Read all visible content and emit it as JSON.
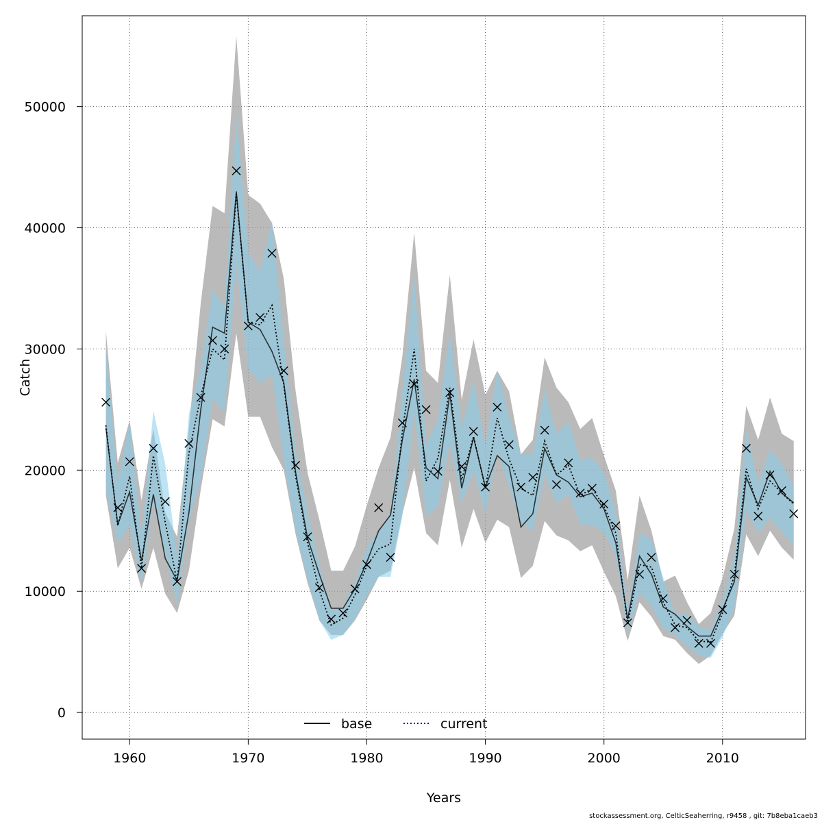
{
  "chart_data": {
    "type": "line",
    "xlabel": "Years",
    "ylabel": "Catch",
    "xlim": [
      1956,
      2017
    ],
    "ylim": [
      -2200,
      57500
    ],
    "xticks": [
      1960,
      1970,
      1980,
      1990,
      2000,
      2010
    ],
    "yticks": [
      0,
      10000,
      20000,
      30000,
      40000,
      50000
    ],
    "grid": true,
    "legend_position": "bottom-center",
    "colors": {
      "base_band": "#a0a0a0",
      "current_band": "#87ceeb",
      "base_line": "#000000",
      "current_line": "#00008b",
      "observed_marker": "#000000"
    },
    "x": [
      1958,
      1959,
      1960,
      1961,
      1962,
      1963,
      1964,
      1965,
      1966,
      1967,
      1968,
      1969,
      1970,
      1971,
      1972,
      1973,
      1974,
      1975,
      1976,
      1977,
      1978,
      1979,
      1980,
      1981,
      1982,
      1983,
      1984,
      1985,
      1986,
      1987,
      1988,
      1989,
      1990,
      1991,
      1992,
      1993,
      1994,
      1995,
      1996,
      1997,
      1998,
      1999,
      2000,
      2001,
      2002,
      2003,
      2004,
      2005,
      2006,
      2007,
      2008,
      2009,
      2010,
      2011,
      2012,
      2013,
      2014,
      2015,
      2016
    ],
    "observed": [
      25600,
      16900,
      20700,
      11900,
      21800,
      17400,
      10800,
      22200,
      26000,
      30700,
      30000,
      44700,
      31900,
      32600,
      37900,
      28200,
      20400,
      14500,
      10300,
      7700,
      8200,
      10200,
      12200,
      16900,
      12800,
      23900,
      27100,
      25000,
      19900,
      26400,
      20300,
      23200,
      18600,
      25200,
      22100,
      18600,
      19400,
      23300,
      18800,
      20600,
      18100,
      18500,
      17200,
      15400,
      7400,
      11400,
      12800,
      9400,
      7000,
      7600,
      5700,
      5700,
      8500,
      11400,
      21800,
      16200,
      19600,
      18300,
      16400
    ],
    "series": [
      {
        "name": "base",
        "values": [
          23500,
          15500,
          18200,
          12500,
          18000,
          12700,
          10900,
          16500,
          25000,
          31800,
          31300,
          43000,
          32200,
          31600,
          29800,
          27200,
          19800,
          14400,
          11400,
          8600,
          8600,
          10200,
          12400,
          15000,
          16300,
          22500,
          27500,
          20200,
          19300,
          26300,
          18500,
          22700,
          18600,
          21200,
          20300,
          15300,
          16400,
          21800,
          19600,
          19000,
          17800,
          18100,
          16800,
          14000,
          7700,
          12900,
          11400,
          8700,
          8100,
          7100,
          6300,
          6300,
          8500,
          10800,
          19400,
          17100,
          19900,
          18100,
          17300
        ],
        "upper": [
          31500,
          20600,
          24100,
          17500,
          23400,
          16500,
          14500,
          23500,
          33800,
          41800,
          41200,
          55800,
          42700,
          42000,
          40400,
          35800,
          26500,
          19800,
          15900,
          11700,
          11700,
          13700,
          17100,
          20200,
          22700,
          29400,
          39600,
          28200,
          27200,
          36100,
          25800,
          30800,
          26200,
          28200,
          26500,
          21300,
          22500,
          29300,
          26800,
          25600,
          23400,
          24300,
          21200,
          18300,
          10900,
          17900,
          15000,
          10800,
          11300,
          9100,
          7300,
          8200,
          11100,
          15200,
          25300,
          22500,
          26000,
          23000,
          22400
        ],
        "lower": [
          17900,
          11900,
          13600,
          10200,
          13600,
          9800,
          8200,
          11700,
          18400,
          24200,
          23600,
          31300,
          24400,
          24400,
          21900,
          20000,
          14700,
          10700,
          7600,
          6400,
          6400,
          7600,
          9300,
          11200,
          11700,
          16400,
          20200,
          14800,
          13800,
          19200,
          13600,
          16800,
          14000,
          15900,
          15300,
          11100,
          12100,
          15800,
          14600,
          14200,
          13300,
          13800,
          11600,
          9600,
          5900,
          9100,
          7900,
          6300,
          6000,
          4900,
          4000,
          4700,
          6500,
          8000,
          14700,
          12900,
          15000,
          13600,
          12600
        ]
      },
      {
        "name": "current",
        "values": [
          23700,
          15400,
          19500,
          11900,
          21200,
          15700,
          10800,
          21400,
          26100,
          30000,
          29100,
          42800,
          32200,
          32000,
          33600,
          27000,
          19500,
          14000,
          10100,
          7200,
          7800,
          9700,
          12100,
          13500,
          13900,
          23200,
          30000,
          19100,
          21000,
          26800,
          19200,
          22800,
          18500,
          24300,
          20900,
          18500,
          17900,
          22400,
          19600,
          20400,
          17900,
          18500,
          17000,
          14800,
          7300,
          12200,
          12000,
          9100,
          7200,
          7000,
          5900,
          5800,
          8200,
          11300,
          20100,
          16800,
          19100,
          18100,
          17200
        ],
        "upper": [
          30000,
          19000,
          24000,
          14600,
          24900,
          20500,
          12900,
          24600,
          28500,
          34900,
          33500,
          49400,
          38000,
          36400,
          40600,
          30600,
          21600,
          16500,
          12100,
          8500,
          8700,
          10800,
          13600,
          15000,
          16500,
          26600,
          36000,
          22100,
          24200,
          31300,
          23500,
          27400,
          22000,
          28200,
          24400,
          21300,
          21300,
          26600,
          23000,
          24000,
          20900,
          21000,
          19800,
          16600,
          8300,
          14800,
          14300,
          11100,
          8100,
          8100,
          7100,
          6800,
          9300,
          12800,
          23400,
          18900,
          21700,
          20500,
          18700
        ],
        "lower": [
          18300,
          14000,
          15500,
          10600,
          17400,
          13000,
          8900,
          15800,
          19300,
          25900,
          24800,
          37000,
          28400,
          27200,
          27900,
          20700,
          15000,
          11000,
          7600,
          6000,
          6400,
          7700,
          9600,
          11200,
          11200,
          16200,
          24800,
          16200,
          17000,
          22300,
          17200,
          19900,
          16400,
          21600,
          18600,
          15700,
          15000,
          19600,
          17300,
          18000,
          15500,
          15500,
          14800,
          13000,
          6500,
          9900,
          8800,
          6900,
          6400,
          5500,
          4700,
          4500,
          6200,
          8700,
          16700,
          14800,
          16100,
          14900,
          13800
        ]
      }
    ],
    "credit": "stockassessment.org, CelticSeaherring, r9458 , git: 7b8eba1caeb3"
  }
}
